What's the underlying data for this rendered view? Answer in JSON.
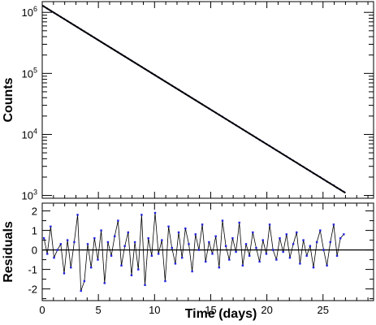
{
  "chart_data": [
    {
      "type": "scatter",
      "title": "",
      "xlabel": "",
      "ylabel": "Counts",
      "x_scale": "linear",
      "y_scale": "log",
      "xlim": [
        0,
        29.5
      ],
      "ylim": [
        900,
        1500000
      ],
      "y_ticks": [
        {
          "value": 1000,
          "label_base": "10",
          "label_exp": "3"
        },
        {
          "value": 10000,
          "label_base": "10",
          "label_exp": "4"
        },
        {
          "value": 100000,
          "label_base": "10",
          "label_exp": "5"
        },
        {
          "value": 1000000,
          "label_base": "10",
          "label_exp": "6"
        }
      ],
      "series": [
        {
          "color": "#2222dd",
          "marker": "dot",
          "error_bars": true,
          "data_range_x": [
            0,
            27
          ]
        },
        {
          "type": "line",
          "color": "#000000",
          "fit": "exponential",
          "points": [
            [
              0,
              1300000
            ],
            [
              27,
              1100
            ]
          ]
        }
      ]
    },
    {
      "type": "scatter",
      "title": "",
      "xlabel": "Time (days)",
      "ylabel": "Residuals",
      "xlim": [
        0,
        29.5
      ],
      "ylim": [
        -2.6,
        2.4
      ],
      "x_ticks": [
        0,
        5,
        10,
        15,
        20,
        25
      ],
      "x_tick_labels": [
        "0",
        "5",
        "10",
        "15",
        "20",
        "25"
      ],
      "y_ticks": [
        -2,
        -1,
        0,
        1,
        2
      ],
      "y_tick_labels": [
        "-2",
        "-1",
        "0",
        "1",
        "2"
      ],
      "reference_line": 0,
      "series": [
        {
          "color": "#2222dd",
          "connect_color": "#000000",
          "x": [
            0.15,
            0.45,
            0.75,
            1.05,
            1.35,
            1.65,
            1.95,
            2.25,
            2.55,
            2.85,
            3.15,
            3.45,
            3.75,
            4.05,
            4.35,
            4.65,
            4.95,
            5.25,
            5.55,
            5.85,
            6.15,
            6.45,
            6.75,
            7.05,
            7.35,
            7.65,
            7.95,
            8.25,
            8.55,
            8.85,
            9.15,
            9.45,
            9.75,
            10.05,
            10.35,
            10.65,
            10.95,
            11.25,
            11.55,
            11.85,
            12.15,
            12.45,
            12.75,
            13.05,
            13.35,
            13.65,
            13.95,
            14.25,
            14.55,
            14.85,
            15.15,
            15.45,
            15.75,
            16.05,
            16.35,
            16.65,
            16.95,
            17.25,
            17.55,
            17.85,
            18.15,
            18.45,
            18.75,
            19.05,
            19.35,
            19.65,
            19.95,
            20.25,
            20.55,
            20.85,
            21.15,
            21.45,
            21.75,
            22.05,
            22.35,
            22.65,
            22.95,
            23.25,
            23.55,
            23.85,
            24.15,
            24.45,
            24.75,
            25.05,
            25.35,
            25.65,
            25.95,
            26.25,
            26.55,
            26.85
          ],
          "y": [
            0.6,
            -0.2,
            1.2,
            -0.4,
            0.0,
            0.3,
            -1.2,
            0.5,
            -0.9,
            0.4,
            1.8,
            -2.1,
            -1.6,
            0.3,
            -0.9,
            0.6,
            -0.5,
            1.0,
            -1.7,
            0.4,
            -0.3,
            0.7,
            1.5,
            -0.8,
            0.2,
            0.9,
            -1.3,
            0.4,
            -1.0,
            1.8,
            -1.8,
            0.6,
            -0.3,
            1.9,
            -0.2,
            0.5,
            -1.6,
            1.2,
            0.1,
            -0.7,
            0.9,
            -0.4,
            1.1,
            0.3,
            -1.1,
            0.8,
            0.0,
            1.3,
            -0.6,
            0.4,
            -0.2,
            0.7,
            -0.9,
            1.5,
            0.2,
            -0.5,
            0.6,
            -0.1,
            1.4,
            -0.8,
            0.3,
            -0.3,
            0.9,
            0.1,
            -0.6,
            0.5,
            -0.2,
            1.3,
            0.0,
            -0.5,
            0.6,
            -0.1,
            0.8,
            -0.4,
            0.3,
            0.9,
            -0.7,
            0.5,
            -0.3,
            0.2,
            -0.9,
            0.4,
            1.0,
            0.0,
            -0.8,
            0.4,
            1.3,
            -0.3,
            0.6,
            0.8
          ]
        }
      ]
    }
  ]
}
